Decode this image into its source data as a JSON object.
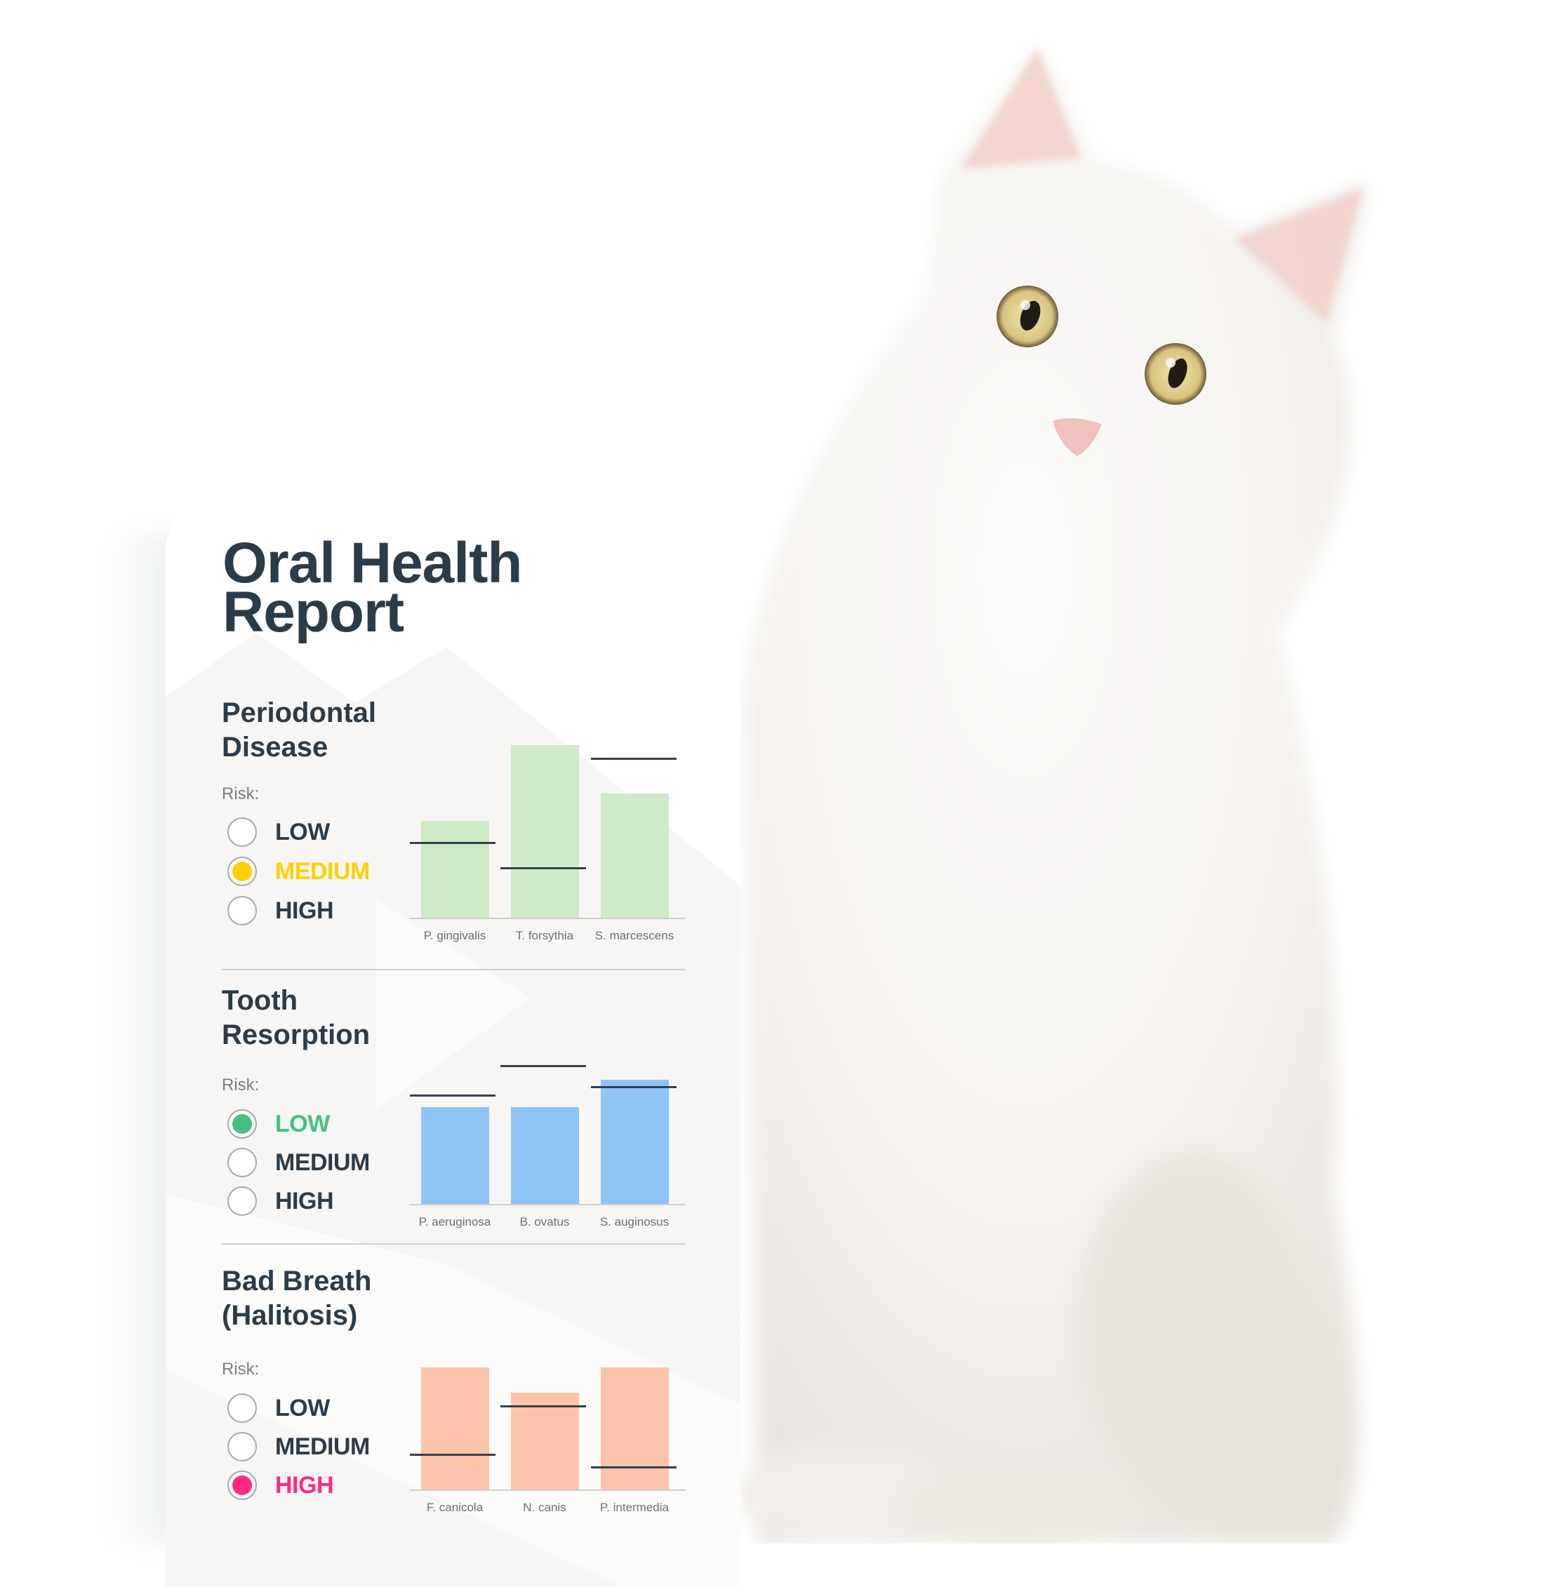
{
  "report": {
    "title_line1": "Oral Health",
    "title_line2": "Report"
  },
  "colors": {
    "text": "#2c3b48",
    "low": "#45c080",
    "medium": "#ffd000",
    "high": "#ff2a80",
    "periodontal_bars": "#cfeac7",
    "resorption_bars": "#90c4f5",
    "halitosis_bars": "#fec4a9"
  },
  "sections": [
    {
      "title_line1": "Periodontal",
      "title_line2": "Disease",
      "risk_label": "Risk:",
      "options": [
        "LOW",
        "MEDIUM",
        "HIGH"
      ],
      "selected": "MEDIUM"
    },
    {
      "title_line1": "Tooth",
      "title_line2": "Resorption",
      "risk_label": "Risk:",
      "options": [
        "LOW",
        "MEDIUM",
        "HIGH"
      ],
      "selected": "LOW"
    },
    {
      "title_line1": "Bad Breath",
      "title_line2": "(Halitosis)",
      "risk_label": "Risk:",
      "options": [
        "LOW",
        "MEDIUM",
        "HIGH"
      ],
      "selected": "HIGH"
    }
  ],
  "chart_data": [
    {
      "type": "bar",
      "categories": [
        "P. gingivalis",
        "T. forsythia",
        "S. marcescens"
      ],
      "values": [
        46,
        82,
        59
      ],
      "reference_lines": [
        36,
        24,
        76
      ],
      "ylim": [
        0,
        100
      ],
      "bar_color": "#cfeac7",
      "grid": false
    },
    {
      "type": "bar",
      "categories": [
        "P. aeruginosa",
        "B. ovatus",
        "S. auginosus"
      ],
      "values": [
        46,
        46,
        59
      ],
      "reference_lines": [
        52,
        66,
        56
      ],
      "ylim": [
        0,
        100
      ],
      "bar_color": "#90c4f5",
      "grid": false
    },
    {
      "type": "bar",
      "categories": [
        "F. canicola",
        "N. canis",
        "P. intermedia"
      ],
      "values": [
        58,
        46,
        58
      ],
      "reference_lines": [
        17,
        40,
        11
      ],
      "ylim": [
        0,
        100
      ],
      "bar_color": "#fec4a9",
      "grid": false
    }
  ],
  "photo": {
    "subject_icon": "white-cat-photo"
  }
}
